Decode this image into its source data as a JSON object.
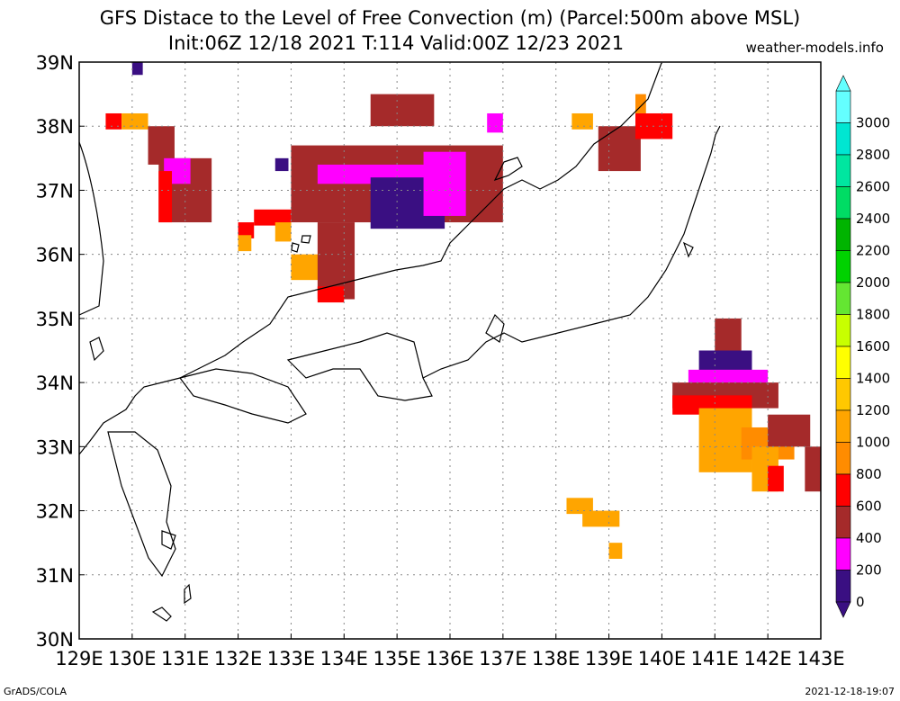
{
  "title_line1": "GFS Distace to the Level of Free Convection (m) (Parcel:500m above MSL)",
  "title_line2": "Init:06Z 12/18 2021 T:114 Valid:00Z 12/23 2021",
  "site": "weather-models.info",
  "footer_left": "GrADS/COLA",
  "footer_right": "2021-12-18-19:07",
  "lat_labels": [
    "39N",
    "38N",
    "37N",
    "36N",
    "35N",
    "34N",
    "33N",
    "32N",
    "31N",
    "30N"
  ],
  "lon_labels": [
    "129E",
    "130E",
    "131E",
    "132E",
    "133E",
    "134E",
    "135E",
    "136E",
    "137E",
    "138E",
    "139E",
    "140E",
    "141E",
    "142E",
    "143E"
  ],
  "colorbar": {
    "labels": [
      "0",
      "200",
      "400",
      "600",
      "800",
      "1000",
      "1200",
      "1400",
      "1600",
      "1800",
      "2000",
      "2200",
      "2400",
      "2600",
      "2800",
      "3000"
    ],
    "colors": [
      "#3a0f82",
      "#ff00ff",
      "#a52a2a",
      "#ff0000",
      "#ff8c00",
      "#ffa500",
      "#ffc800",
      "#ffff00",
      "#c8ff00",
      "#64e632",
      "#00d200",
      "#00b400",
      "#00dc64",
      "#00e6a0",
      "#00e6d2",
      "#64ffff"
    ]
  },
  "patches": [
    {
      "lon": 130.0,
      "lat": 39.0,
      "w": 0.2,
      "h": 0.2,
      "c": "#3a0f82"
    },
    {
      "lon": 129.5,
      "lat": 38.2,
      "w": 0.3,
      "h": 0.25,
      "c": "#ff0000"
    },
    {
      "lon": 129.8,
      "lat": 38.2,
      "w": 0.5,
      "h": 0.25,
      "c": "#ffa500"
    },
    {
      "lon": 130.3,
      "lat": 38.0,
      "w": 0.5,
      "h": 0.6,
      "c": "#a52a2a"
    },
    {
      "lon": 130.5,
      "lat": 37.5,
      "w": 1.0,
      "h": 1.0,
      "c": "#a52a2a"
    },
    {
      "lon": 130.6,
      "lat": 37.5,
      "w": 0.5,
      "h": 0.4,
      "c": "#ff00ff"
    },
    {
      "lon": 130.5,
      "lat": 37.3,
      "w": 0.25,
      "h": 0.8,
      "c": "#ff0000"
    },
    {
      "lon": 132.0,
      "lat": 36.5,
      "w": 0.3,
      "h": 0.25,
      "c": "#ff0000"
    },
    {
      "lon": 132.3,
      "lat": 36.7,
      "w": 0.7,
      "h": 0.25,
      "c": "#ff0000"
    },
    {
      "lon": 132.0,
      "lat": 36.3,
      "w": 0.25,
      "h": 0.25,
      "c": "#ffa500"
    },
    {
      "lon": 132.7,
      "lat": 36.5,
      "w": 0.3,
      "h": 0.3,
      "c": "#ffa500"
    },
    {
      "lon": 133.0,
      "lat": 36.0,
      "w": 0.7,
      "h": 0.4,
      "c": "#ffa500"
    },
    {
      "lon": 133.5,
      "lat": 36.5,
      "w": 0.7,
      "h": 1.2,
      "c": "#a52a2a"
    },
    {
      "lon": 133.5,
      "lat": 35.5,
      "w": 0.5,
      "h": 0.25,
      "c": "#ff0000"
    },
    {
      "lon": 133.0,
      "lat": 37.7,
      "w": 4.0,
      "h": 1.2,
      "c": "#a52a2a"
    },
    {
      "lon": 134.5,
      "lat": 38.5,
      "w": 1.2,
      "h": 0.5,
      "c": "#a52a2a"
    },
    {
      "lon": 133.5,
      "lat": 37.4,
      "w": 2.6,
      "h": 0.3,
      "c": "#ff00ff"
    },
    {
      "lon": 134.5,
      "lat": 37.2,
      "w": 1.4,
      "h": 0.8,
      "c": "#3a0f82"
    },
    {
      "lon": 135.5,
      "lat": 37.6,
      "w": 0.8,
      "h": 1.0,
      "c": "#ff00ff"
    },
    {
      "lon": 136.7,
      "lat": 38.2,
      "w": 0.3,
      "h": 0.3,
      "c": "#ff00ff"
    },
    {
      "lon": 132.7,
      "lat": 37.5,
      "w": 0.25,
      "h": 0.2,
      "c": "#3a0f82"
    },
    {
      "lon": 138.3,
      "lat": 38.2,
      "w": 0.4,
      "h": 0.25,
      "c": "#ffa500"
    },
    {
      "lon": 138.8,
      "lat": 38.0,
      "w": 0.8,
      "h": 0.7,
      "c": "#a52a2a"
    },
    {
      "lon": 139.5,
      "lat": 38.2,
      "w": 0.7,
      "h": 0.4,
      "c": "#ff0000"
    },
    {
      "lon": 139.5,
      "lat": 38.5,
      "w": 0.2,
      "h": 0.3,
      "c": "#ff8c00"
    },
    {
      "lon": 141.0,
      "lat": 35.0,
      "w": 0.5,
      "h": 0.5,
      "c": "#a52a2a"
    },
    {
      "lon": 140.7,
      "lat": 34.5,
      "w": 1.0,
      "h": 0.35,
      "c": "#3a0f82"
    },
    {
      "lon": 140.5,
      "lat": 34.2,
      "w": 1.5,
      "h": 0.3,
      "c": "#ff00ff"
    },
    {
      "lon": 140.2,
      "lat": 34.0,
      "w": 2.0,
      "h": 0.4,
      "c": "#a52a2a"
    },
    {
      "lon": 140.2,
      "lat": 33.8,
      "w": 1.5,
      "h": 0.3,
      "c": "#ff0000"
    },
    {
      "lon": 140.7,
      "lat": 33.6,
      "w": 1.0,
      "h": 1.0,
      "c": "#ffa500"
    },
    {
      "lon": 141.5,
      "lat": 33.3,
      "w": 1.0,
      "h": 0.5,
      "c": "#ff8c00"
    },
    {
      "lon": 141.7,
      "lat": 33.0,
      "w": 0.5,
      "h": 0.7,
      "c": "#ffa500"
    },
    {
      "lon": 142.0,
      "lat": 33.5,
      "w": 0.8,
      "h": 0.5,
      "c": "#a52a2a"
    },
    {
      "lon": 142.0,
      "lat": 32.7,
      "w": 0.3,
      "h": 0.4,
      "c": "#ff0000"
    },
    {
      "lon": 142.7,
      "lat": 33.0,
      "w": 0.3,
      "h": 0.7,
      "c": "#a52a2a"
    },
    {
      "lon": 138.2,
      "lat": 32.2,
      "w": 0.5,
      "h": 0.25,
      "c": "#ffa500"
    },
    {
      "lon": 138.5,
      "lat": 32.0,
      "w": 0.7,
      "h": 0.25,
      "c": "#ffa500"
    },
    {
      "lon": 139.0,
      "lat": 31.5,
      "w": 0.25,
      "h": 0.25,
      "c": "#ffa500"
    }
  ]
}
